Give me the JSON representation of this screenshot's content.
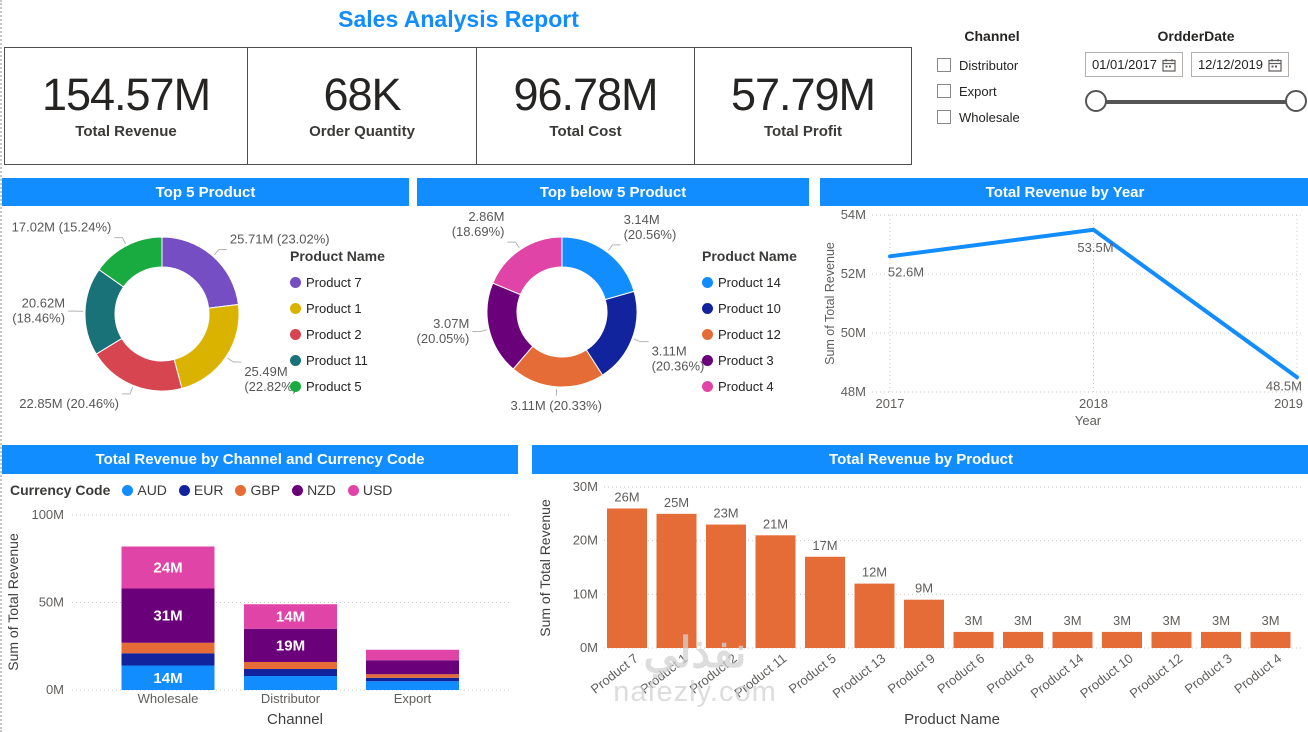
{
  "report": {
    "title": "Sales Analysis Report",
    "kpis": [
      {
        "value": "154.57M",
        "label": "Total Revenue"
      },
      {
        "value": "68K",
        "label": "Order Quantity"
      },
      {
        "value": "96.78M",
        "label": "Total Cost"
      },
      {
        "value": "57.79M",
        "label": "Total Profit"
      }
    ],
    "channel_filter": {
      "title": "Channel",
      "options": [
        "Distributor",
        "Export",
        "Wholesale"
      ]
    },
    "date_filter": {
      "title": "OrdderDate",
      "start": "01/01/2017",
      "end": "12/12/2019"
    }
  },
  "colors": {
    "accent": "#118DFF",
    "header_bar": "#118DFF",
    "kpi_text": "#252423",
    "axis_text": "#605E5C",
    "palette": [
      "#118DFF",
      "#12239E",
      "#E66C37",
      "#6B007B",
      "#E044A7",
      "#744EC2",
      "#D9B300",
      "#D64550",
      "#197278",
      "#1AAB40"
    ]
  },
  "watermark": {
    "line1": "نفذلي",
    "line2": "nafezly.com"
  },
  "chart_data": [
    {
      "id": "top5",
      "type": "pie",
      "title": "Top 5 Product",
      "legend_title": "Product Name",
      "legend_position": "right",
      "slices": [
        {
          "name": "Product 7",
          "value_m": 25.71,
          "pct": 23.02,
          "color": "#744EC2",
          "label_lines": [
            "25.71M (23.02%)"
          ]
        },
        {
          "name": "Product 1",
          "value_m": 25.49,
          "pct": 22.82,
          "color": "#D9B300",
          "label_lines": [
            "25.49M",
            "(22.82%)"
          ]
        },
        {
          "name": "Product 2",
          "value_m": 22.85,
          "pct": 20.46,
          "color": "#D64550",
          "label_lines": [
            "22.85M (20.46%)"
          ]
        },
        {
          "name": "Product 11",
          "value_m": 20.62,
          "pct": 18.46,
          "color": "#197278",
          "label_lines": [
            "20.62M",
            "(18.46%)"
          ]
        },
        {
          "name": "Product 5",
          "value_m": 17.02,
          "pct": 15.24,
          "color": "#1AAB40",
          "label_lines": [
            "17.02M (15.24%)"
          ]
        }
      ]
    },
    {
      "id": "below5",
      "type": "pie",
      "title": "Top below 5 Product",
      "legend_title": "Product Name",
      "legend_position": "right",
      "slices": [
        {
          "name": "Product 14",
          "value_m": 3.14,
          "pct": 20.56,
          "color": "#118DFF",
          "label_lines": [
            "3.14M",
            "(20.56%)"
          ]
        },
        {
          "name": "Product 10",
          "value_m": 3.11,
          "pct": 20.36,
          "color": "#12239E",
          "label_lines": [
            "3.11M",
            "(20.36%)"
          ]
        },
        {
          "name": "Product 12",
          "value_m": 3.11,
          "pct": 20.33,
          "color": "#E66C37",
          "label_lines": [
            "3.11M (20.33%)"
          ]
        },
        {
          "name": "Product 3",
          "value_m": 3.07,
          "pct": 20.05,
          "color": "#6B007B",
          "label_lines": [
            "3.07M",
            "(20.05%)"
          ]
        },
        {
          "name": "Product 4",
          "value_m": 2.86,
          "pct": 18.69,
          "color": "#E044A7",
          "label_lines": [
            "2.86M",
            "(18.69%)"
          ]
        }
      ]
    },
    {
      "id": "revenue_by_year",
      "type": "line",
      "title": "Total Revenue by Year",
      "x": [
        "2017",
        "2018",
        "2019"
      ],
      "values_m": [
        52.6,
        53.5,
        48.5
      ],
      "point_labels": [
        "52.6M",
        "53.5M",
        "48.5M"
      ],
      "xlabel": "Year",
      "ylabel": "Sum of Total Revenue",
      "yticks": [
        "48M",
        "50M",
        "52M",
        "54M"
      ],
      "ylim_m": [
        48,
        54
      ],
      "grid": true,
      "line_color": "#118DFF"
    },
    {
      "id": "revenue_by_channel_currency",
      "type": "stacked-bar",
      "title": "Total Revenue by Channel and Currency Code",
      "legend_title": "Currency Code",
      "legend_position": "top",
      "categories": [
        "Wholesale",
        "Distributor",
        "Export"
      ],
      "series": [
        {
          "name": "AUD",
          "color": "#118DFF",
          "values_m": [
            14,
            8,
            5
          ],
          "labels": [
            "14M",
            null,
            null
          ]
        },
        {
          "name": "EUR",
          "color": "#12239E",
          "values_m": [
            7,
            4,
            2
          ],
          "labels": [
            null,
            null,
            null
          ]
        },
        {
          "name": "GBP",
          "color": "#E66C37",
          "values_m": [
            6,
            4,
            2
          ],
          "labels": [
            null,
            null,
            null
          ]
        },
        {
          "name": "NZD",
          "color": "#6B007B",
          "values_m": [
            31,
            19,
            8
          ],
          "labels": [
            "31M",
            "19M",
            null
          ]
        },
        {
          "name": "USD",
          "color": "#E044A7",
          "values_m": [
            24,
            14,
            6
          ],
          "labels": [
            "24M",
            "14M",
            null
          ]
        }
      ],
      "yticks": [
        "0M",
        "50M",
        "100M"
      ],
      "ylim_m": [
        0,
        100
      ],
      "grid": true,
      "xlabel": "Channel",
      "ylabel": "Sum of Total Revenue"
    },
    {
      "id": "revenue_by_product",
      "type": "bar",
      "title": "Total Revenue by Product",
      "categories": [
        "Product 7",
        "Product 1",
        "Product 2",
        "Product 11",
        "Product 5",
        "Product 13",
        "Product 9",
        "Product 6",
        "Product 8",
        "Product 14",
        "Product 10",
        "Product 12",
        "Product 3",
        "Product 4"
      ],
      "values_m": [
        26,
        25,
        23,
        21,
        17,
        12,
        9,
        3,
        3,
        3,
        3,
        3,
        3,
        3
      ],
      "bar_labels": [
        "26M",
        "25M",
        "23M",
        "21M",
        "17M",
        "12M",
        "9M",
        "3M",
        "3M",
        "3M",
        "3M",
        "3M",
        "3M",
        "3M"
      ],
      "yticks": [
        "0M",
        "10M",
        "20M",
        "30M"
      ],
      "ylim_m": [
        0,
        30
      ],
      "grid": true,
      "xlabel": "Product Name",
      "ylabel": "Sum of Total Revenue",
      "bar_color": "#E66C37"
    }
  ]
}
